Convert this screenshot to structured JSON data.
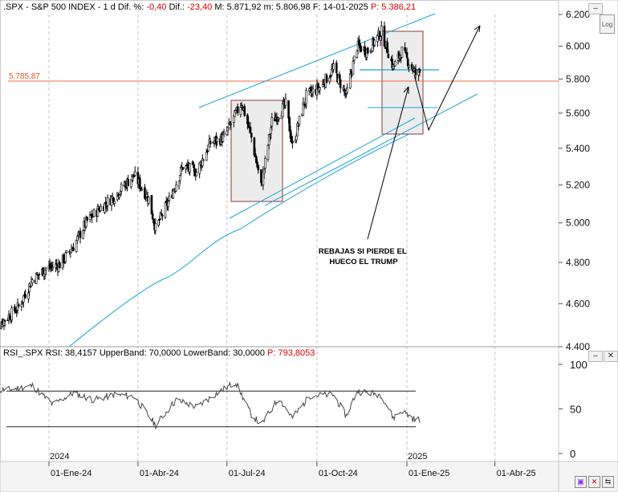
{
  "header": {
    "symbol": ".SPX - S&P 500 INDEX - 1 d",
    "dif_pct_label": "Dif. %:",
    "dif_pct": "-0,40",
    "dif_label": "Dif.:",
    "dif": "-23,40",
    "max_label": "M: 5.871,92",
    "min_label": "m: 5.806,98",
    "date_label": "F: 14-01-2025",
    "price_label": "P: 5.386,21"
  },
  "log_button": "Log",
  "rsi_header": {
    "name": "RSI_.SPX",
    "values": "RSI: 38,4157  UpperBand: 70,0000  LowerBand: 30,0000",
    "p": "P: 793,8053"
  },
  "hline_label": "5.785,87",
  "annotation": "REBAJAS SI PIERDE EL\nHUECO EL TRUMP",
  "year_labels": [
    "2024",
    "2025"
  ],
  "colors": {
    "candle": "#000000",
    "trendline": "#1ba3d8",
    "hline": "#f07040",
    "box_fill": "#ececec",
    "box_stroke": "#8b3a3a",
    "rsi": "#444444"
  },
  "chart_data": [
    {
      "type": "line",
      "title": ".SPX - S&P 500 INDEX - 1 d",
      "xlabel": "",
      "ylabel": "",
      "ylim": [
        4400,
        6200
      ],
      "y_ticks": [
        "4.400",
        "4.600",
        "4.800",
        "5.000",
        "5.200",
        "5.400",
        "5.600",
        "5.800",
        "6.000",
        "6.200"
      ],
      "x_ticks": [
        "01-Ene-24",
        "01-Abr-24",
        "01-Jul-24",
        "01-Oct-24",
        "01-Ene-25",
        "01-Abr-25"
      ],
      "scale": "log",
      "series": [
        {
          "values": [
            {
              "date": "2023-11-03",
              "close": 4480
            },
            {
              "date": "2023-11-17",
              "close": 4525
            },
            {
              "date": "2023-12-01",
              "close": 4585
            },
            {
              "date": "2023-12-15",
              "close": 4715
            },
            {
              "date": "2023-12-29",
              "close": 4770
            },
            {
              "date": "2024-01-12",
              "close": 4790
            },
            {
              "date": "2024-01-26",
              "close": 4880
            },
            {
              "date": "2024-02-09",
              "close": 5010
            },
            {
              "date": "2024-02-23",
              "close": 5080
            },
            {
              "date": "2024-03-08",
              "close": 5140
            },
            {
              "date": "2024-03-22",
              "close": 5220
            },
            {
              "date": "2024-03-28",
              "close": 5250
            },
            {
              "date": "2024-04-12",
              "close": 5125
            },
            {
              "date": "2024-04-19",
              "close": 4970
            },
            {
              "date": "2024-05-03",
              "close": 5120
            },
            {
              "date": "2024-05-17",
              "close": 5300
            },
            {
              "date": "2024-05-31",
              "close": 5270
            },
            {
              "date": "2024-06-14",
              "close": 5430
            },
            {
              "date": "2024-06-28",
              "close": 5460
            },
            {
              "date": "2024-07-16",
              "close": 5660
            },
            {
              "date": "2024-07-26",
              "close": 5460
            },
            {
              "date": "2024-08-05",
              "close": 5190
            },
            {
              "date": "2024-08-16",
              "close": 5550
            },
            {
              "date": "2024-08-30",
              "close": 5650
            },
            {
              "date": "2024-09-06",
              "close": 5410
            },
            {
              "date": "2024-09-20",
              "close": 5700
            },
            {
              "date": "2024-10-04",
              "close": 5750
            },
            {
              "date": "2024-10-18",
              "close": 5860
            },
            {
              "date": "2024-10-31",
              "close": 5700
            },
            {
              "date": "2024-11-11",
              "close": 6000
            },
            {
              "date": "2024-11-22",
              "close": 5970
            },
            {
              "date": "2024-12-06",
              "close": 6090
            },
            {
              "date": "2024-12-18",
              "close": 5870
            },
            {
              "date": "2024-12-27",
              "close": 5970
            },
            {
              "date": "2025-01-10",
              "close": 5830
            },
            {
              "date": "2025-01-14",
              "close": 5840
            }
          ]
        }
      ],
      "annotations": [
        {
          "type": "hline",
          "value": 5785.87,
          "label": "5.785,87"
        },
        {
          "type": "text",
          "text": "REBAJAS SI PIERDE EL\nHUECO EL TRUMP"
        }
      ]
    },
    {
      "type": "line",
      "title": "RSI_.SPX",
      "ylim": [
        0,
        100
      ],
      "y_ticks": [
        "0",
        "50",
        "100"
      ],
      "bands": [
        30,
        70
      ],
      "series": [
        {
          "values": [
            {
              "date": "2023-11-03",
              "rsi": 70
            },
            {
              "date": "2023-11-24",
              "rsi": 72
            },
            {
              "date": "2023-12-15",
              "rsi": 76
            },
            {
              "date": "2024-01-05",
              "rsi": 55
            },
            {
              "date": "2024-01-26",
              "rsi": 68
            },
            {
              "date": "2024-02-16",
              "rsi": 60
            },
            {
              "date": "2024-03-08",
              "rsi": 66
            },
            {
              "date": "2024-03-28",
              "rsi": 64
            },
            {
              "date": "2024-04-19",
              "rsi": 32
            },
            {
              "date": "2024-05-10",
              "rsi": 60
            },
            {
              "date": "2024-05-31",
              "rsi": 52
            },
            {
              "date": "2024-06-21",
              "rsi": 68
            },
            {
              "date": "2024-07-10",
              "rsi": 80
            },
            {
              "date": "2024-07-25",
              "rsi": 45
            },
            {
              "date": "2024-08-05",
              "rsi": 32
            },
            {
              "date": "2024-08-23",
              "rsi": 62
            },
            {
              "date": "2024-09-06",
              "rsi": 40
            },
            {
              "date": "2024-09-24",
              "rsi": 65
            },
            {
              "date": "2024-10-18",
              "rsi": 66
            },
            {
              "date": "2024-10-31",
              "rsi": 42
            },
            {
              "date": "2024-11-11",
              "rsi": 70
            },
            {
              "date": "2024-12-06",
              "rsi": 66
            },
            {
              "date": "2024-12-18",
              "rsi": 40
            },
            {
              "date": "2024-12-27",
              "rsi": 48
            },
            {
              "date": "2025-01-10",
              "rsi": 37
            },
            {
              "date": "2025-01-14",
              "rsi": 38.4
            }
          ]
        }
      ]
    }
  ]
}
